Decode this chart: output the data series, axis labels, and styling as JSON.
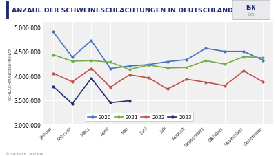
{
  "title": "ANZAHL DER SCHWEINESCHLACHTUNGEN IN DEUTSCHLAND",
  "ylabel": "SCHLACHTUNGEN/MONAT",
  "months": [
    "Januar",
    "Februar",
    "März",
    "April",
    "Mai",
    "Juni",
    "Juli",
    "August",
    "September",
    "Oktober",
    "November",
    "Dezember"
  ],
  "series": {
    "2020": [
      4900000,
      4380000,
      4720000,
      4150000,
      4200000,
      4230000,
      4290000,
      4330000,
      4560000,
      4500000,
      4500000,
      4320000
    ],
    "2021": [
      4430000,
      4300000,
      4310000,
      4280000,
      4130000,
      4220000,
      4160000,
      4170000,
      4310000,
      4240000,
      4390000,
      4370000
    ],
    "2022": [
      4050000,
      3880000,
      4150000,
      3770000,
      4020000,
      3960000,
      3730000,
      3930000,
      3870000,
      3800000,
      4100000,
      3880000
    ],
    "2023": [
      3780000,
      3430000,
      3950000,
      3450000,
      3490000,
      null,
      null,
      null,
      null,
      null,
      null,
      null
    ]
  },
  "colors": {
    "2020": "#4472C4",
    "2021": "#70AD47",
    "2022": "#C0504D",
    "2023": "#1F2D6E"
  },
  "ylim": [
    3000000,
    5100000
  ],
  "yticks": [
    3000000,
    3500000,
    4000000,
    4500000,
    5000000
  ],
  "background_color": "#FFFFFF",
  "plot_bg_color": "#F0F0F0",
  "grid_color": "#FFFFFF",
  "title_color": "#1F2D6E",
  "title_bar_color": "#1F2D6E",
  "header_bg": "#E8EAF0",
  "footer_text": "©ISN nach Destatis"
}
